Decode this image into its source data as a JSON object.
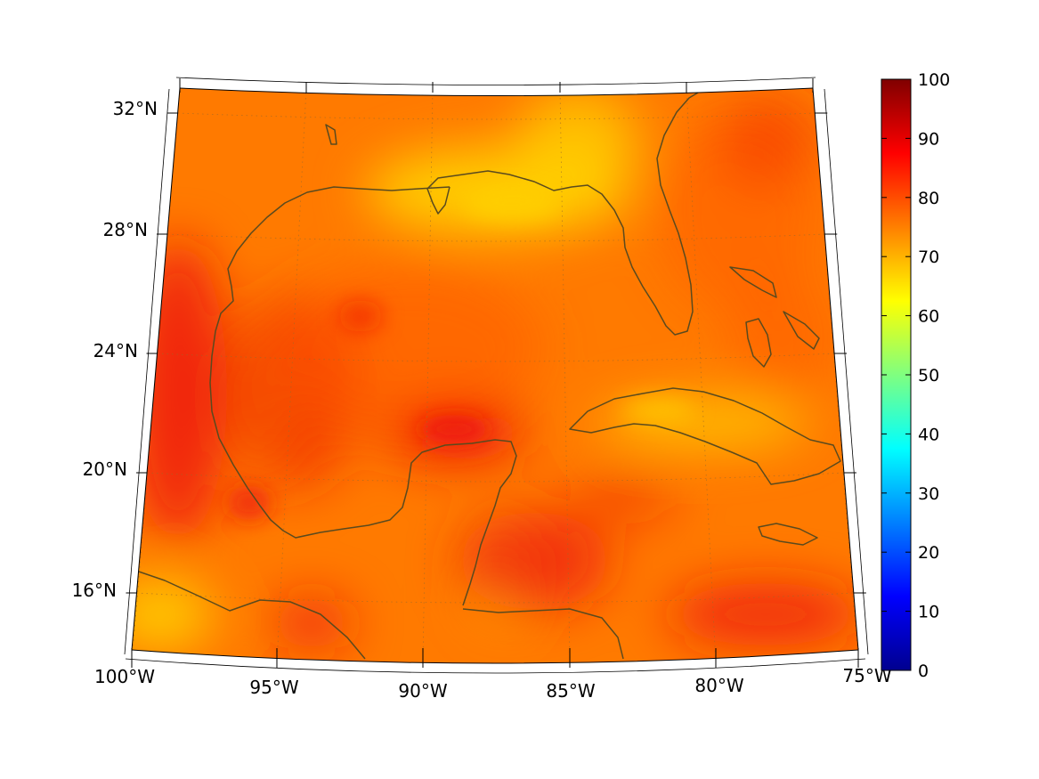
{
  "map": {
    "projection": "conic",
    "longitude_labels": [
      "100°W",
      "95°W",
      "90°W",
      "85°W",
      "80°W",
      "75°W"
    ],
    "latitude_labels": [
      "32°N",
      "28°N",
      "24°N",
      "20°N",
      "16°N"
    ],
    "grid": "dotted",
    "coastline_color": "#5a4a1e"
  },
  "colorbar": {
    "colormap": "jet",
    "min": 0,
    "max": 100,
    "tick_labels": [
      "0",
      "10",
      "20",
      "30",
      "40",
      "50",
      "60",
      "70",
      "80",
      "90",
      "100"
    ]
  },
  "field": {
    "dominant_range": [
      65,
      90
    ],
    "colors": {
      "orange": "#ff7a00",
      "dark_orange": "#ff5a00",
      "red": "#ee1a0a",
      "yellow": "#ffd000"
    }
  }
}
